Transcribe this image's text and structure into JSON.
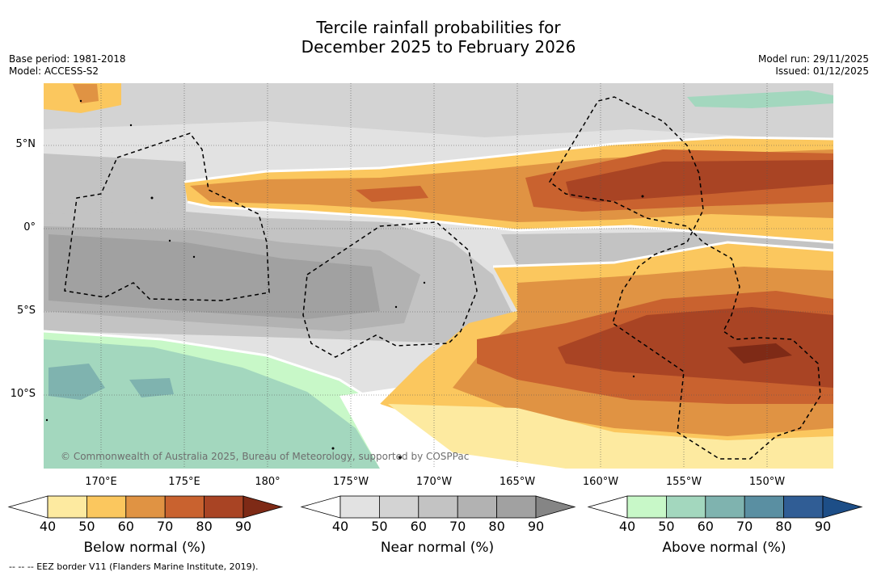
{
  "title": {
    "line1": "Tercile rainfall probabilities for",
    "line2": "December 2025 to February 2026"
  },
  "meta": {
    "base_period": "Base period: 1981-2018",
    "model": "Model: ACCESS-S2",
    "model_run": "Model run: 29/11/2025",
    "issued": "Issued: 01/12/2025"
  },
  "map": {
    "lat_labels": [
      "5°N",
      "0°",
      "5°S",
      "10°S"
    ],
    "lon_labels": [
      "170°E",
      "175°E",
      "180°",
      "175°W",
      "170°W",
      "165°W",
      "160°W",
      "155°W",
      "150°W"
    ],
    "credit": "© Commonwealth of Australia 2025, Bureau of Meteorology, supported by COSPPac"
  },
  "colorbars": [
    {
      "title": "Below normal (%)",
      "ticks": [
        "40",
        "50",
        "60",
        "70",
        "80",
        "90"
      ],
      "colors": [
        "#ffffff",
        "#fdeaa0",
        "#fbc75e",
        "#e09343",
        "#c9622f",
        "#a94424",
        "#7e2a16"
      ]
    },
    {
      "title": "Near normal (%)",
      "ticks": [
        "40",
        "50",
        "60",
        "70",
        "80",
        "90"
      ],
      "colors": [
        "#ffffff",
        "#e2e2e2",
        "#d3d3d3",
        "#c3c3c3",
        "#b2b2b2",
        "#a1a1a1",
        "#858585"
      ]
    },
    {
      "title": "Above normal (%)",
      "ticks": [
        "40",
        "50",
        "60",
        "70",
        "80",
        "90"
      ],
      "colors": [
        "#ffffff",
        "#c8f8c8",
        "#a3d7be",
        "#7fb3af",
        "#5a8fa2",
        "#305d95",
        "#1d4e87"
      ]
    }
  ],
  "footnote": "--  --  -- EEZ border V11 (Flanders Marine Institute, 2019)."
}
